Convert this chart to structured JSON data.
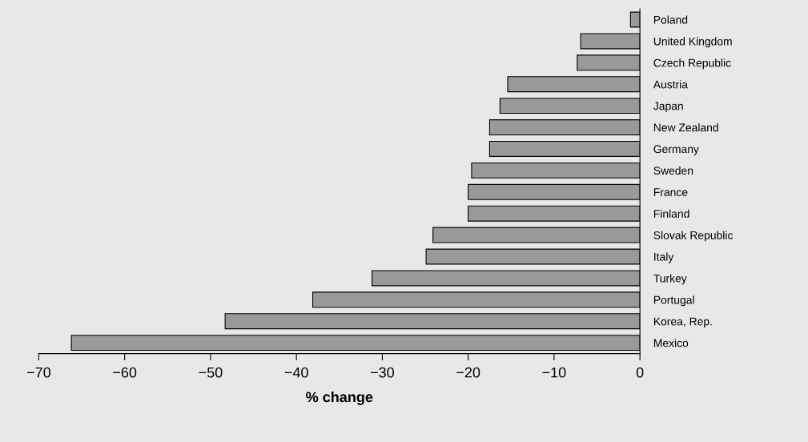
{
  "chart_data": {
    "type": "bar",
    "orientation": "horizontal",
    "xlabel": "% change",
    "categories": [
      "Poland",
      "United Kingdom",
      "Czech Republic",
      "Austria",
      "Japan",
      "New Zealand",
      "Germany",
      "Sweden",
      "France",
      "Finland",
      "Slovak Republic",
      "Italy",
      "Turkey",
      "Portugal",
      "Korea, Rep.",
      "Mexico"
    ],
    "values": [
      -1.1,
      -6.9,
      -7.3,
      -15.4,
      -16.3,
      -17.5,
      -17.5,
      -19.6,
      -20.0,
      -20.0,
      -24.1,
      -24.9,
      -31.2,
      -38.1,
      -48.3,
      -66.2
    ],
    "color": "#999999",
    "xlim": [
      -70,
      0
    ],
    "xticks": [
      {
        "value": -70,
        "label": "−70"
      },
      {
        "value": -60,
        "label": "−60"
      },
      {
        "value": -50,
        "label": "−50"
      },
      {
        "value": -40,
        "label": "−40"
      },
      {
        "value": -30,
        "label": "−30"
      },
      {
        "value": -20,
        "label": "−20"
      },
      {
        "value": -10,
        "label": "−10"
      },
      0
    ],
    "grid": false,
    "legend": false
  }
}
